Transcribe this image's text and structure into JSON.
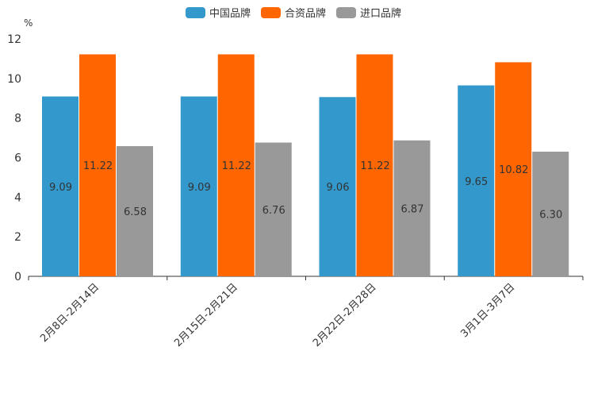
{
  "chart_data": {
    "type": "bar",
    "title": "",
    "ylabel": "%",
    "xlabel": "",
    "ylim": [
      0,
      12
    ],
    "yticks": [
      0,
      2,
      4,
      6,
      8,
      10,
      12
    ],
    "ytick_labels": [
      "0",
      "2",
      "4",
      "6",
      "8",
      "10",
      "12"
    ],
    "categories": [
      "2月8日-2月14日",
      "2月15日-2月21日",
      "2月22日-2月28日",
      "3月1日-3月7日"
    ],
    "series": [
      {
        "name": "中国品牌",
        "color": "#3399CC",
        "values": [
          9.09,
          9.09,
          9.06,
          9.65
        ],
        "labels": [
          "9.09",
          "9.09",
          "9.06",
          "9.65"
        ]
      },
      {
        "name": "合资品牌",
        "color": "#FF6600",
        "values": [
          11.22,
          11.22,
          11.22,
          10.82
        ],
        "labels": [
          "11.22",
          "11.22",
          "11.22",
          "10.82"
        ]
      },
      {
        "name": "进口品牌",
        "color": "#999999",
        "values": [
          6.58,
          6.76,
          6.87,
          6.3
        ],
        "labels": [
          "6.58",
          "6.76",
          "6.87",
          "6.30"
        ]
      }
    ],
    "legend": "top-center",
    "grid": false
  }
}
